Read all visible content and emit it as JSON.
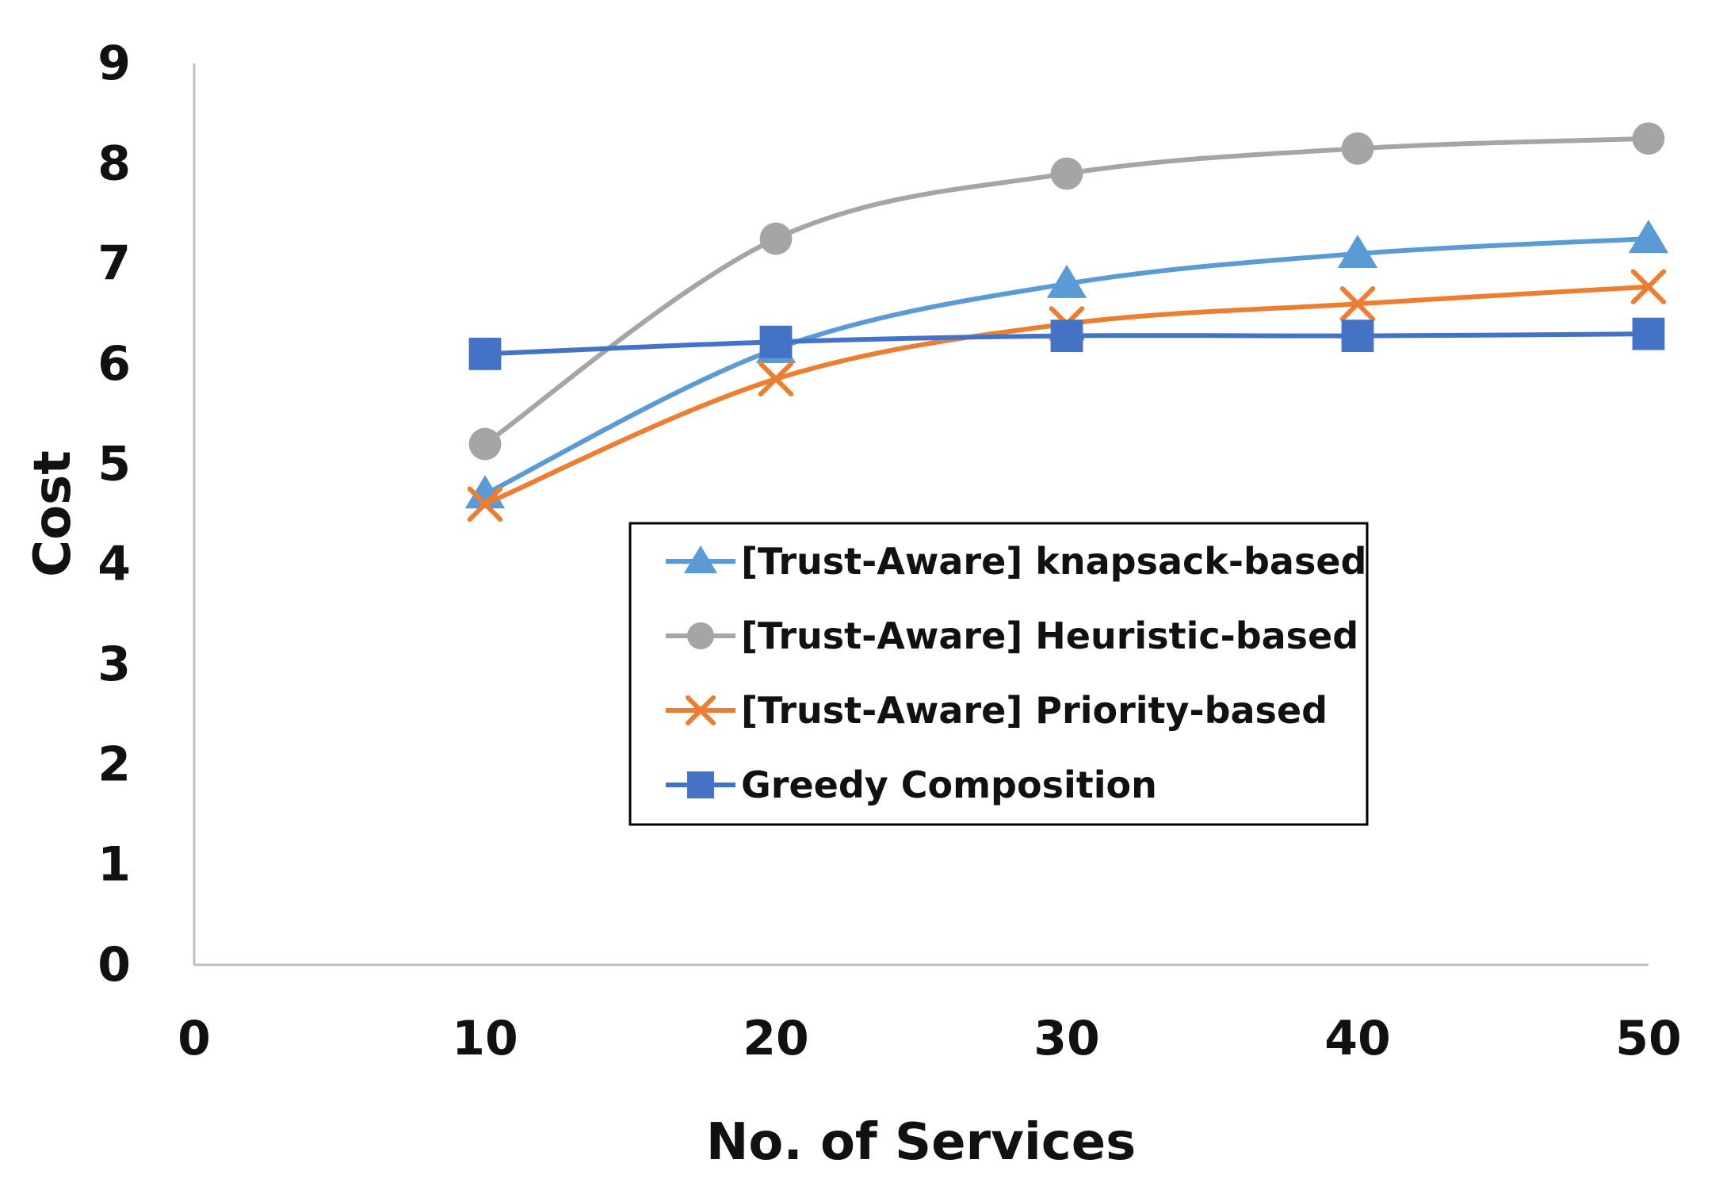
{
  "chart_data": {
    "type": "line",
    "title": "",
    "xlabel": "No. of Services",
    "ylabel": "Cost",
    "xlim": [
      0,
      50
    ],
    "ylim": [
      0,
      9
    ],
    "xticks": [
      0,
      10,
      20,
      30,
      40,
      50
    ],
    "yticks": [
      0,
      1,
      2,
      3,
      4,
      5,
      6,
      7,
      8,
      9
    ],
    "x": [
      10,
      20,
      30,
      40,
      50
    ],
    "grid": false,
    "legend_position": "center",
    "series": [
      {
        "name": "[Trust-Aware] knapsack-based",
        "values": [
          4.7,
          6.15,
          6.8,
          7.1,
          7.25
        ],
        "color": "#5B9BD5",
        "marker": "triangle"
      },
      {
        "name": "[Trust-Aware] Heuristic-based",
        "values": [
          5.2,
          7.25,
          7.9,
          8.15,
          8.25
        ],
        "color": "#A5A5A5",
        "marker": "circle"
      },
      {
        "name": "[Trust-Aware] Priority-based",
        "values": [
          4.6,
          5.85,
          6.4,
          6.6,
          6.77
        ],
        "color": "#ED7D31",
        "marker": "x"
      },
      {
        "name": "Greedy Composition",
        "values": [
          6.1,
          6.22,
          6.28,
          6.28,
          6.3
        ],
        "color": "#4472C4",
        "marker": "square"
      }
    ]
  }
}
